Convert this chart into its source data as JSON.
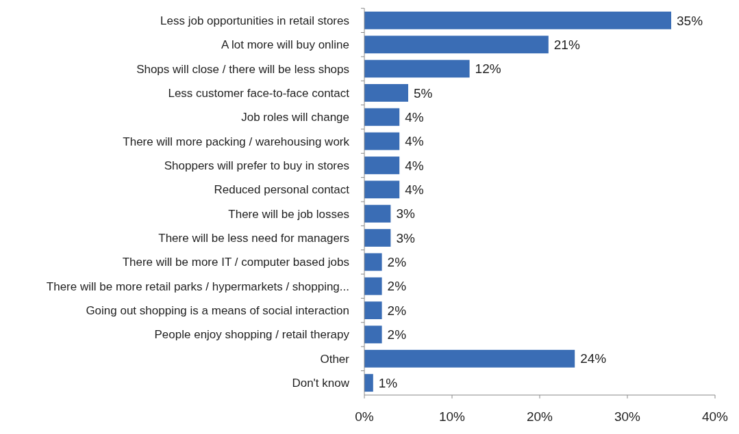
{
  "chart_data": {
    "type": "bar",
    "orientation": "horizontal",
    "categories": [
      "Less job opportunities in retail stores",
      "A lot more will buy online",
      "Shops will close / there will be less shops",
      "Less customer face-to-face contact",
      "Job roles will change",
      "There will more packing / warehousing work",
      "Shoppers will prefer to buy in stores",
      "Reduced personal contact",
      "There will be job losses",
      "There will be less need for managers",
      "There will be more IT / computer based jobs",
      "There will be more retail parks / hypermarkets / shopping...",
      "Going out shopping is a means of social interaction",
      "People enjoy shopping / retail therapy",
      "Other",
      "Don't know"
    ],
    "values": [
      35,
      21,
      12,
      5,
      4,
      4,
      4,
      4,
      3,
      3,
      2,
      2,
      2,
      2,
      24,
      1
    ],
    "value_labels": [
      "35%",
      "21%",
      "12%",
      "5%",
      "4%",
      "4%",
      "4%",
      "4%",
      "3%",
      "3%",
      "2%",
      "2%",
      "2%",
      "2%",
      "24%",
      "1%"
    ],
    "color": "#3a6db5",
    "xlim": [
      0,
      40
    ],
    "xticks": [
      {
        "value": 0,
        "label": "0%"
      },
      {
        "value": 10,
        "label": "10%"
      },
      {
        "value": 20,
        "label": "20%"
      },
      {
        "value": 30,
        "label": "30%"
      },
      {
        "value": 40,
        "label": "40%"
      }
    ],
    "grid": false
  }
}
